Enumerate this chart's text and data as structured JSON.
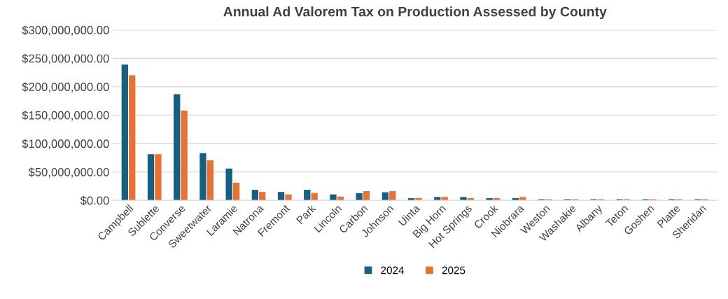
{
  "chart_data": {
    "type": "bar",
    "title": "Annual Ad Valorem Tax on Production Assessed by County",
    "categories": [
      "Campbell",
      "Sublette",
      "Converse",
      "Sweetwater",
      "Laramie",
      "Natrona",
      "Fremont",
      "Park",
      "Lincoln",
      "Carbon",
      "Johnson",
      "Uinta",
      "Big Horn",
      "Hot Springs",
      "Crook",
      "Niobrara",
      "Weston",
      "Washakie",
      "Albany",
      "Teton",
      "Goshen",
      "Platte",
      "Sheridan"
    ],
    "series": [
      {
        "name": "2024",
        "color": "#156082",
        "values": [
          239000000,
          81000000,
          187000000,
          83000000,
          56000000,
          18500000,
          14700000,
          18500000,
          10400000,
          12500000,
          14200000,
          3900000,
          5900000,
          5900000,
          3900000,
          3900000,
          2000000,
          2000000,
          2000000,
          2000000,
          2000000,
          2000000,
          2000000
        ]
      },
      {
        "name": "2025",
        "color": "#e97132",
        "values": [
          220000000,
          81000000,
          158000000,
          70500000,
          31000000,
          14700000,
          10400000,
          12800000,
          6600000,
          16200000,
          16200000,
          3900000,
          5900000,
          3900000,
          3900000,
          5900000,
          2000000,
          2000000,
          2000000,
          2000000,
          2000000,
          2000000,
          2000000
        ]
      }
    ],
    "ylim": [
      0,
      300000000
    ],
    "yticks": [
      {
        "value": 0,
        "label": "$0.00"
      },
      {
        "value": 50000000,
        "label": "$50,000,000.00"
      },
      {
        "value": 100000000,
        "label": "$100,000,000.00"
      },
      {
        "value": 150000000,
        "label": "$150,000,000.00"
      },
      {
        "value": 200000000,
        "label": "$200,000,000.00"
      },
      {
        "value": 250000000,
        "label": "$250,000,000.00"
      },
      {
        "value": 300000000,
        "label": "$300,000,000.00"
      }
    ],
    "grid": "y",
    "legend": "bottom"
  }
}
